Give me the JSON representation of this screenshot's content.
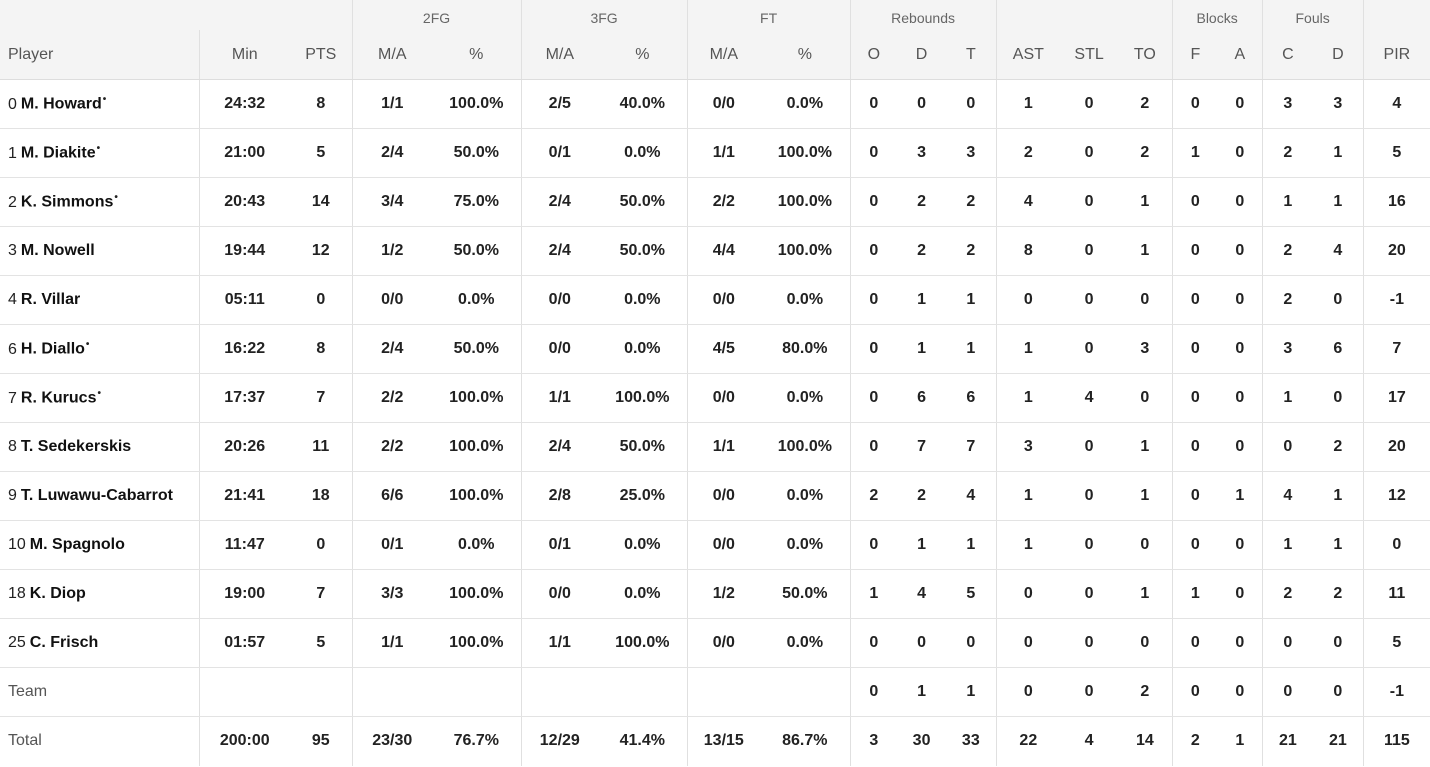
{
  "table": {
    "group_headers": [
      "2FG",
      "3FG",
      "FT",
      "Rebounds",
      "Blocks",
      "Fouls"
    ],
    "columns": [
      "Player",
      "Min",
      "PTS",
      "M/A",
      "%",
      "M/A",
      "%",
      "M/A",
      "%",
      "O",
      "D",
      "T",
      "AST",
      "STL",
      "TO",
      "F",
      "A",
      "C",
      "D",
      "PIR"
    ],
    "rows": [
      {
        "number": 0,
        "name": "M. Howard",
        "starter": "•",
        "stats": [
          "24:32",
          8,
          "1/1",
          "100.0%",
          "2/5",
          "40.0%",
          "0/0",
          "0.0%",
          0,
          0,
          0,
          1,
          0,
          2,
          0,
          0,
          3,
          3,
          4
        ]
      },
      {
        "number": 1,
        "name": "M. Diakite",
        "starter": "•",
        "stats": [
          "21:00",
          5,
          "2/4",
          "50.0%",
          "0/1",
          "0.0%",
          "1/1",
          "100.0%",
          0,
          3,
          3,
          2,
          0,
          2,
          1,
          0,
          2,
          1,
          5
        ]
      },
      {
        "number": 2,
        "name": "K. Simmons",
        "starter": "•",
        "stats": [
          "20:43",
          14,
          "3/4",
          "75.0%",
          "2/4",
          "50.0%",
          "2/2",
          "100.0%",
          0,
          2,
          2,
          4,
          0,
          1,
          0,
          0,
          1,
          1,
          16
        ]
      },
      {
        "number": 3,
        "name": "M. Nowell",
        "stats": [
          "19:44",
          12,
          "1/2",
          "50.0%",
          "2/4",
          "50.0%",
          "4/4",
          "100.0%",
          0,
          2,
          2,
          8,
          0,
          1,
          0,
          0,
          2,
          4,
          20
        ]
      },
      {
        "number": 4,
        "name": "R. Villar",
        "stats": [
          "05:11",
          0,
          "0/0",
          "0.0%",
          "0/0",
          "0.0%",
          "0/0",
          "0.0%",
          0,
          1,
          1,
          0,
          0,
          0,
          0,
          0,
          2,
          0,
          -1
        ]
      },
      {
        "number": 6,
        "name": "H. Diallo",
        "starter": "•",
        "stats": [
          "16:22",
          8,
          "2/4",
          "50.0%",
          "0/0",
          "0.0%",
          "4/5",
          "80.0%",
          0,
          1,
          1,
          1,
          0,
          3,
          0,
          0,
          3,
          6,
          7
        ]
      },
      {
        "number": 7,
        "name": "R. Kurucs",
        "starter": "•",
        "stats": [
          "17:37",
          7,
          "2/2",
          "100.0%",
          "1/1",
          "100.0%",
          "0/0",
          "0.0%",
          0,
          6,
          6,
          1,
          4,
          0,
          0,
          0,
          1,
          0,
          17
        ]
      },
      {
        "number": 8,
        "name": "T. Sedekerskis",
        "stats": [
          "20:26",
          11,
          "2/2",
          "100.0%",
          "2/4",
          "50.0%",
          "1/1",
          "100.0%",
          0,
          7,
          7,
          3,
          0,
          1,
          0,
          0,
          0,
          2,
          20
        ]
      },
      {
        "number": 9,
        "name": "T. Luwawu-Cabarrot",
        "stats": [
          "21:41",
          18,
          "6/6",
          "100.0%",
          "2/8",
          "25.0%",
          "0/0",
          "0.0%",
          2,
          2,
          4,
          1,
          0,
          1,
          0,
          1,
          4,
          1,
          12
        ]
      },
      {
        "number": 10,
        "name": "M. Spagnolo",
        "stats": [
          "11:47",
          0,
          "0/1",
          "0.0%",
          "0/1",
          "0.0%",
          "0/0",
          "0.0%",
          0,
          1,
          1,
          1,
          0,
          0,
          0,
          0,
          1,
          1,
          0
        ]
      },
      {
        "number": 18,
        "name": "K. Diop",
        "stats": [
          "19:00",
          7,
          "3/3",
          "100.0%",
          "0/0",
          "0.0%",
          "1/2",
          "50.0%",
          1,
          4,
          5,
          0,
          0,
          1,
          1,
          0,
          2,
          2,
          11
        ]
      },
      {
        "number": 25,
        "name": "C. Frisch",
        "stats": [
          "01:57",
          5,
          "1/1",
          "100.0%",
          "1/1",
          "100.0%",
          "0/0",
          "0.0%",
          0,
          0,
          0,
          0,
          0,
          0,
          0,
          0,
          0,
          0,
          5
        ]
      }
    ],
    "team": {
      "label": "Team",
      "stats": [
        null,
        null,
        null,
        null,
        null,
        null,
        null,
        null,
        0,
        1,
        1,
        0,
        0,
        2,
        0,
        0,
        0,
        0,
        -1
      ]
    },
    "total": {
      "label": "Total",
      "stats": [
        "200:00",
        95,
        "23/30",
        "76.7%",
        "12/29",
        "41.4%",
        "13/15",
        "86.7%",
        3,
        30,
        33,
        22,
        4,
        14,
        2,
        1,
        21,
        21,
        115
      ]
    }
  }
}
